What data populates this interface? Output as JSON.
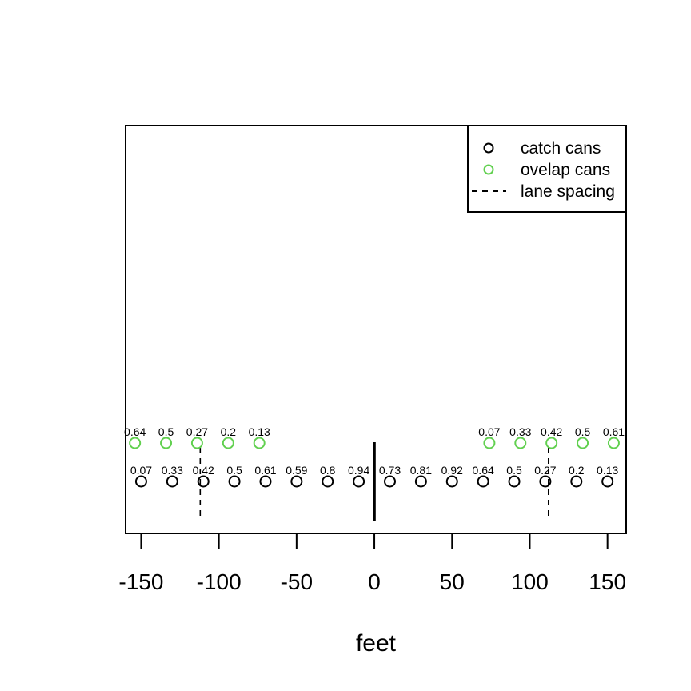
{
  "chart_data": {
    "type": "scatter",
    "title": "",
    "xlabel": "feet",
    "ylabel": "",
    "xlim": [
      -160,
      162
    ],
    "x_ticks": [
      -150,
      -100,
      -50,
      0,
      50,
      100,
      150
    ],
    "x_tick_labels": [
      "-150",
      "-100",
      "-50",
      "0",
      "50",
      "100",
      "150"
    ],
    "grid": false,
    "legend_position": "top-right",
    "legend": [
      {
        "label": "catch cans",
        "marker": "circle",
        "color": "#000000"
      },
      {
        "label": "ovelap cans",
        "marker": "circle",
        "color": "#61D04F"
      },
      {
        "label": "lane spacing",
        "marker": "dashed-line",
        "color": "#000000"
      }
    ],
    "series": [
      {
        "name": "catch cans",
        "color": "#000000",
        "x": [
          -150,
          -130,
          -110,
          -90,
          -70,
          -50,
          -30,
          -10,
          10,
          30,
          50,
          70,
          90,
          110,
          130,
          150
        ],
        "values": [
          0.07,
          0.33,
          0.42,
          0.5,
          0.61,
          0.59,
          0.8,
          0.94,
          0.73,
          0.81,
          0.92,
          0.64,
          0.5,
          0.27,
          0.2,
          0.13
        ],
        "labels": [
          "0.07",
          "0.33",
          "0.42",
          "0.5",
          "0.61",
          "0.59",
          "0.8",
          "0.94",
          "0.73",
          "0.81",
          "0.92",
          "0.64",
          "0.5",
          "0.27",
          "0.2",
          "0.13"
        ]
      },
      {
        "name": "ovelap cans",
        "color": "#61D04F",
        "x": [
          -154,
          -134,
          -114,
          -94,
          -74,
          74,
          94,
          114,
          134,
          154
        ],
        "values": [
          0.64,
          0.5,
          0.27,
          0.2,
          0.13,
          0.07,
          0.33,
          0.42,
          0.5,
          0.61
        ],
        "labels": [
          "0.64",
          "0.5",
          "0.27",
          "0.2",
          "0.13",
          "0.07",
          "0.33",
          "0.42",
          "0.5",
          "0.61"
        ]
      }
    ],
    "lane_spacing_x": [
      -112,
      112
    ],
    "center_line_x": 0
  }
}
